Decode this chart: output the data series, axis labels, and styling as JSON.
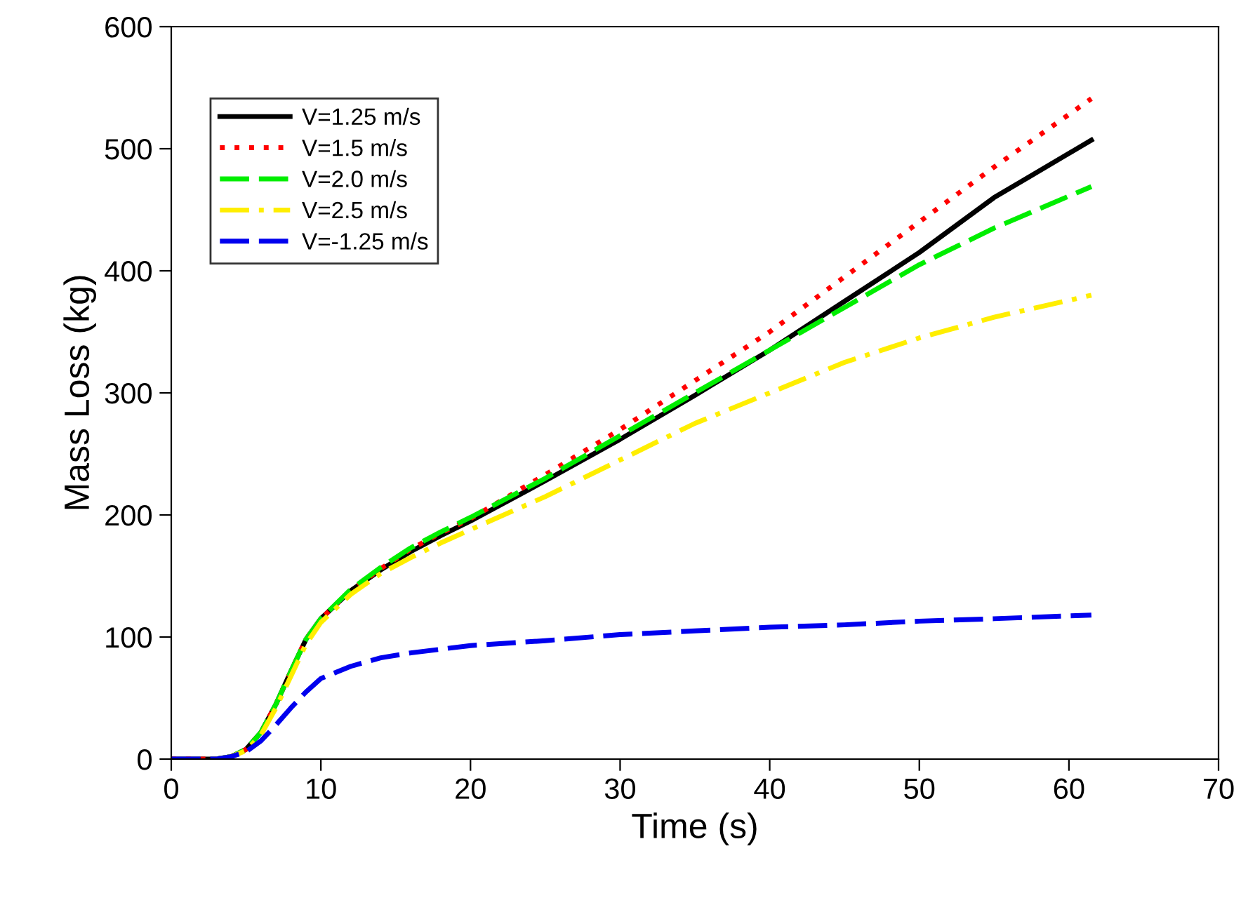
{
  "chart_data": {
    "type": "line",
    "xlabel": "Time (s)",
    "ylabel": "Mass Loss (kg)",
    "xlim": [
      0,
      70
    ],
    "ylim": [
      0,
      600
    ],
    "xticks": [
      0,
      10,
      20,
      30,
      40,
      50,
      60,
      70
    ],
    "yticks": [
      0,
      100,
      200,
      300,
      400,
      500,
      600
    ],
    "grid": false,
    "legend": "top left",
    "marker": "none",
    "x": [
      0,
      2,
      3,
      4,
      5,
      6,
      7,
      8,
      9,
      10,
      12,
      14,
      16,
      18,
      20,
      25,
      30,
      35,
      40,
      45,
      50,
      55,
      61.5
    ],
    "series": [
      {
        "name": "V=1.25 m/s",
        "color": "#000000",
        "line_style": "solid",
        "values": [
          0,
          0,
          0,
          2,
          8,
          22,
          45,
          72,
          98,
          115,
          138,
          155,
          170,
          183,
          195,
          228,
          262,
          298,
          335,
          375,
          415,
          460,
          507
        ]
      },
      {
        "name": "V=1.5 m/s",
        "color": "#ff0000",
        "line_style": "dotted",
        "values": [
          0,
          0,
          0,
          2,
          8,
          22,
          45,
          72,
          98,
          115,
          138,
          156,
          172,
          185,
          197,
          233,
          270,
          310,
          350,
          395,
          440,
          485,
          541
        ]
      },
      {
        "name": "V=2.0 m/s",
        "color": "#00ee00",
        "line_style": "dashed",
        "values": [
          null,
          null,
          0,
          2,
          8,
          22,
          45,
          72,
          98,
          115,
          139,
          157,
          173,
          186,
          198,
          230,
          265,
          300,
          335,
          370,
          405,
          435,
          469
        ]
      },
      {
        "name": "V=2.5 m/s",
        "color": "#ffee00",
        "line_style": "dashdot",
        "values": [
          null,
          null,
          0,
          2,
          7,
          20,
          42,
          68,
          94,
          112,
          135,
          152,
          165,
          177,
          188,
          215,
          245,
          275,
          300,
          325,
          345,
          362,
          380
        ]
      },
      {
        "name": "V=-1.25 m/s",
        "color": "#0000ee",
        "line_style": "dashed",
        "values": [
          0,
          0,
          0,
          2,
          6,
          15,
          28,
          42,
          55,
          66,
          76,
          83,
          87,
          90,
          93,
          97,
          102,
          105,
          108,
          110,
          113,
          115,
          118
        ]
      }
    ]
  }
}
